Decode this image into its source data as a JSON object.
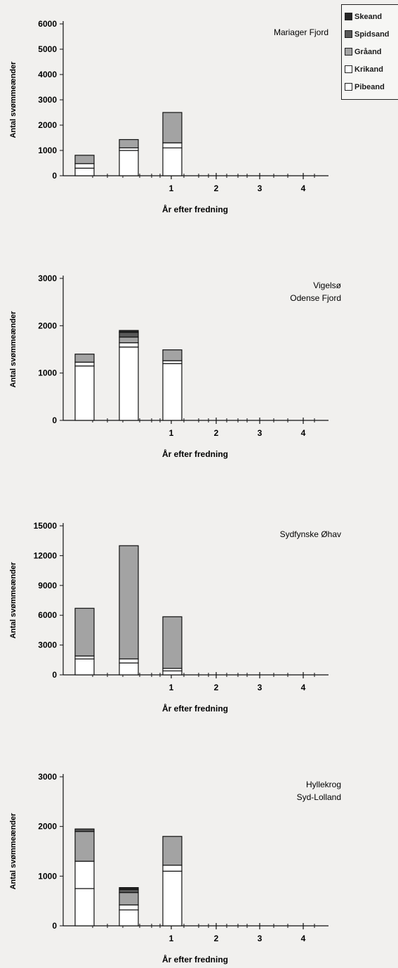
{
  "legend": [
    {
      "label": "Skeand",
      "color": "#262626"
    },
    {
      "label": "Spidsand",
      "color": "#595959"
    },
    {
      "label": "Gråand",
      "color": "#a3a3a3"
    },
    {
      "label": "Krikand",
      "color": "#ffffff"
    },
    {
      "label": "Pibeand",
      "color": "#ffffff"
    }
  ],
  "chart_data": [
    {
      "type": "bar",
      "title": "Mariager Fjord",
      "xlabel": "År efter fredning",
      "ylabel": "Antal svømmeænder",
      "ylim": [
        0,
        6000
      ],
      "yticks": [
        "0",
        "1000",
        "2000",
        "3000",
        "4000",
        "5000",
        "6000"
      ],
      "xticks": [
        "1",
        "2",
        "3",
        "4"
      ],
      "categories": [
        "",
        "",
        "1"
      ],
      "series": [
        {
          "name": "Pibeand",
          "values": [
            300,
            1000,
            1100
          ]
        },
        {
          "name": "Krikand",
          "values": [
            180,
            100,
            200
          ]
        },
        {
          "name": "Gråand",
          "values": [
            330,
            330,
            1200
          ]
        },
        {
          "name": "Spidsand",
          "values": [
            0,
            0,
            0
          ]
        },
        {
          "name": "Skeand",
          "values": [
            0,
            0,
            0
          ]
        }
      ]
    },
    {
      "type": "bar",
      "title": "Vigelsø\nOdense Fjord",
      "xlabel": "År efter fredning",
      "ylabel": "Antal svømmeænder",
      "ylim": [
        0,
        3000
      ],
      "yticks": [
        "0",
        "1000",
        "2000",
        "3000"
      ],
      "xticks": [
        "1",
        "2",
        "3",
        "4"
      ],
      "categories": [
        "",
        "",
        "1"
      ],
      "series": [
        {
          "name": "Pibeand",
          "values": [
            1150,
            1550,
            1200
          ]
        },
        {
          "name": "Krikand",
          "values": [
            80,
            90,
            60
          ]
        },
        {
          "name": "Gråand",
          "values": [
            170,
            120,
            230
          ]
        },
        {
          "name": "Spidsand",
          "values": [
            0,
            100,
            0
          ]
        },
        {
          "name": "Skeand",
          "values": [
            0,
            40,
            0
          ]
        }
      ]
    },
    {
      "type": "bar",
      "title": "Sydfynske Øhav",
      "xlabel": "År efter fredning",
      "ylabel": "Antal svømmeænder",
      "ylim": [
        0,
        15000
      ],
      "yticks": [
        "0",
        "3000",
        "6000",
        "9000",
        "12000",
        "15000"
      ],
      "xticks": [
        "1",
        "2",
        "3",
        "4"
      ],
      "categories": [
        "",
        "",
        "1"
      ],
      "series": [
        {
          "name": "Pibeand",
          "values": [
            1600,
            1200,
            400
          ]
        },
        {
          "name": "Krikand",
          "values": [
            300,
            400,
            250
          ]
        },
        {
          "name": "Gråand",
          "values": [
            4800,
            11400,
            5200
          ]
        },
        {
          "name": "Spidsand",
          "values": [
            0,
            0,
            0
          ]
        },
        {
          "name": "Skeand",
          "values": [
            0,
            0,
            0
          ]
        }
      ]
    },
    {
      "type": "bar",
      "title": "Hyllekrog\nSyd-Lolland",
      "xlabel": "År efter fredning",
      "ylabel": "Antal svømmeænder",
      "ylim": [
        0,
        3000
      ],
      "yticks": [
        "0",
        "1000",
        "2000",
        "3000"
      ],
      "xticks": [
        "1",
        "2",
        "3",
        "4"
      ],
      "categories": [
        "",
        "",
        "1"
      ],
      "series": [
        {
          "name": "Pibeand",
          "values": [
            750,
            320,
            1100
          ]
        },
        {
          "name": "Krikand",
          "values": [
            550,
            100,
            120
          ]
        },
        {
          "name": "Gråand",
          "values": [
            600,
            250,
            580
          ]
        },
        {
          "name": "Spidsand",
          "values": [
            50,
            60,
            0
          ]
        },
        {
          "name": "Skeand",
          "values": [
            0,
            40,
            0
          ]
        }
      ]
    }
  ]
}
